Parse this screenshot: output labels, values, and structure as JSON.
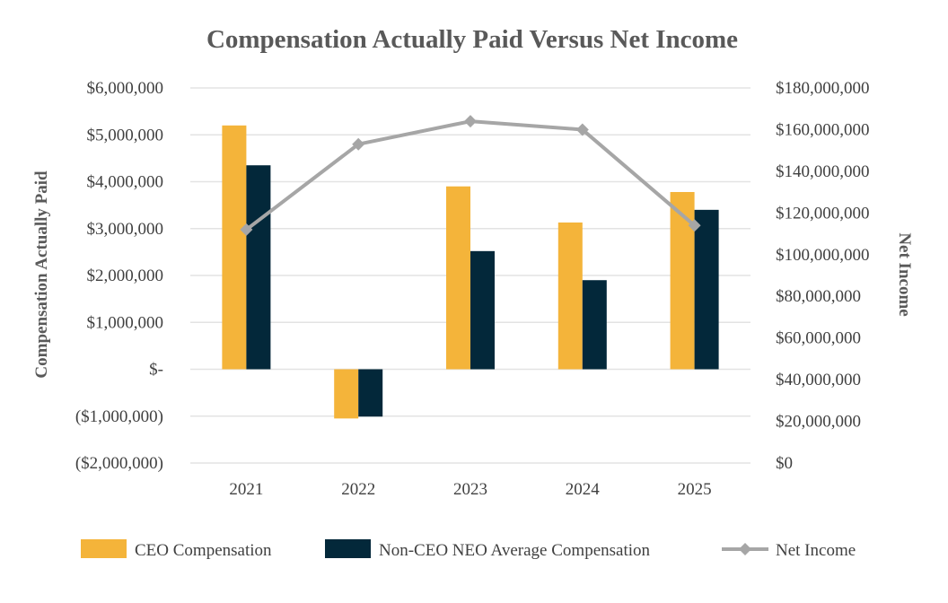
{
  "chart_data": {
    "type": "bar",
    "title": "Compensation Actually Paid Versus Net Income",
    "categories": [
      "2021",
      "2022",
      "2023",
      "2024",
      "2025"
    ],
    "y_left": {
      "label": "Compensation Actually Paid",
      "range": [
        -2000000,
        6000000
      ],
      "ticks": [
        6000000,
        5000000,
        4000000,
        3000000,
        2000000,
        1000000,
        0,
        -1000000,
        -2000000
      ],
      "tick_labels": [
        "$6,000,000",
        "$5,000,000",
        "$4,000,000",
        "$3,000,000",
        "$2,000,000",
        "$1,000,000",
        "$-",
        "($1,000,000)",
        "($2,000,000)"
      ]
    },
    "y_right": {
      "label": "Net Income",
      "range": [
        0,
        180000000
      ],
      "ticks": [
        180000000,
        160000000,
        140000000,
        120000000,
        100000000,
        80000000,
        60000000,
        40000000,
        20000000,
        0
      ],
      "tick_labels": [
        "$180,000,000",
        "$160,000,000",
        "$140,000,000",
        "$120,000,000",
        "$100,000,000",
        "$80,000,000",
        "$60,000,000",
        "$40,000,000",
        "$20,000,000",
        "$0"
      ]
    },
    "series": [
      {
        "name": "CEO Compensation",
        "type": "bar",
        "axis": "left",
        "color": "#F4B43A",
        "values": [
          5200000,
          -1050000,
          3900000,
          3130000,
          3780000
        ]
      },
      {
        "name": "Non-CEO NEO Average Compensation",
        "type": "bar",
        "axis": "left",
        "color": "#03283A",
        "values": [
          4350000,
          -1010000,
          2520000,
          1900000,
          3400000
        ]
      },
      {
        "name": "Net Income",
        "type": "line",
        "axis": "right",
        "color": "#A6A6A6",
        "marker": "diamond",
        "values": [
          112000000,
          153000000,
          164000000,
          160000000,
          114000000
        ]
      }
    ],
    "grid": true,
    "legend": "bottom"
  }
}
